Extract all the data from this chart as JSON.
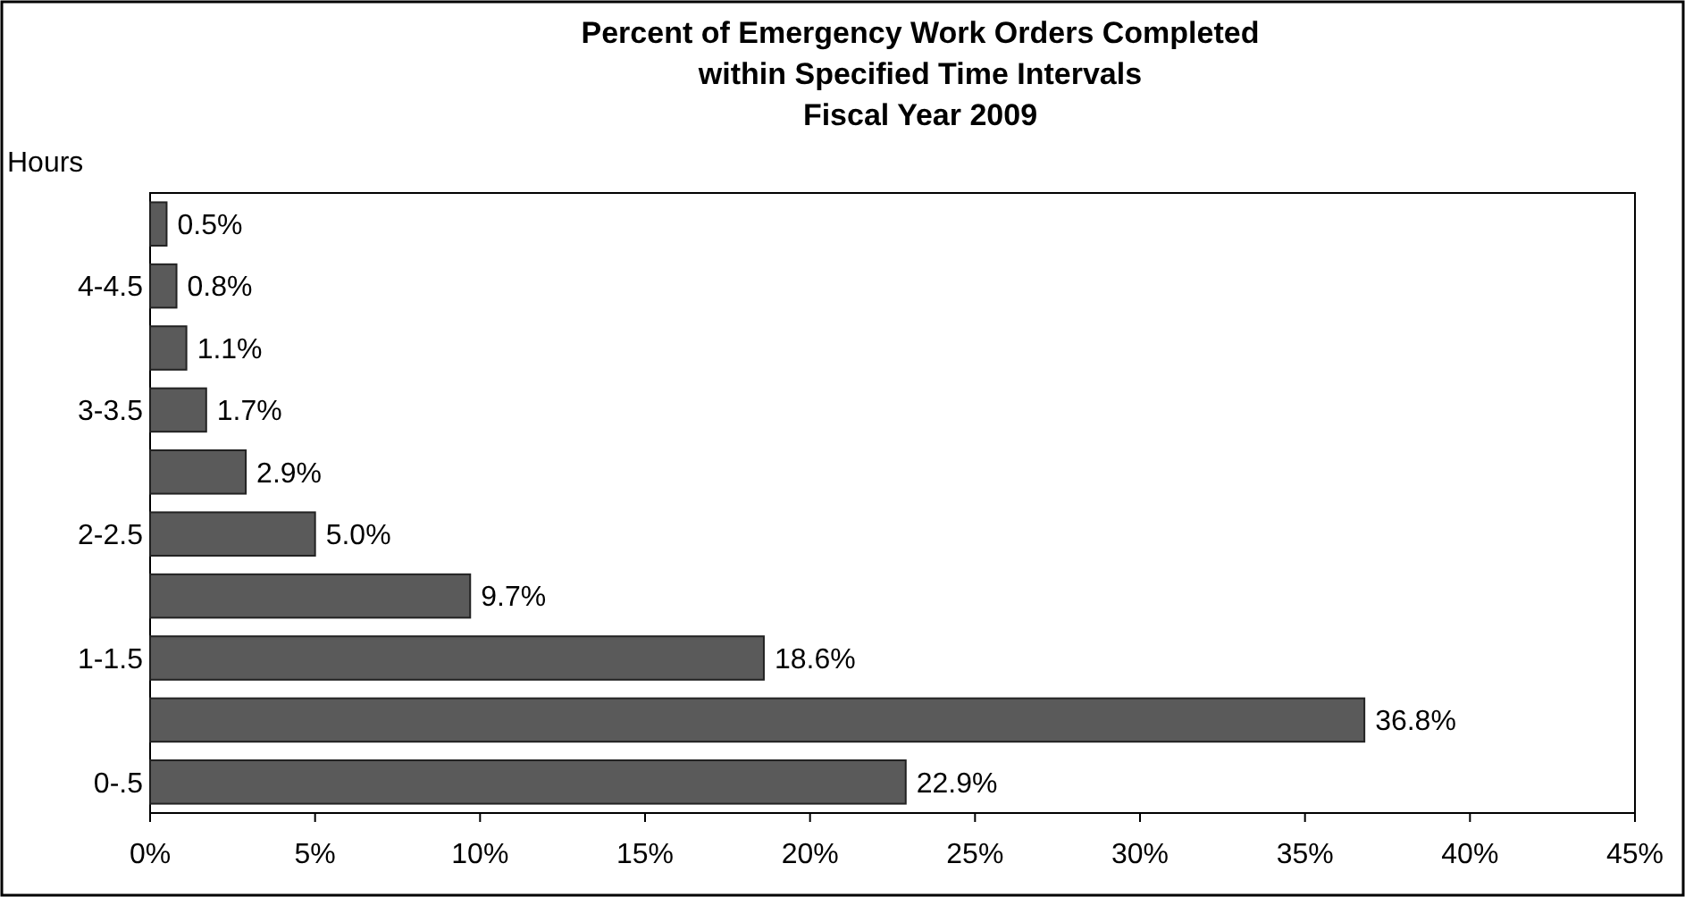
{
  "chart_data": {
    "type": "bar",
    "orientation": "horizontal",
    "title": "Percent of Emergency Work Orders Completed\nwithin Specified Time Intervals",
    "subtitle": "Fiscal Year 2009",
    "ylabel": "Hours",
    "categories": [
      null,
      "4-4.5",
      null,
      "3-3.5",
      null,
      "2-2.5",
      null,
      "1-1.5",
      null,
      "0-.5"
    ],
    "values": [
      0.5,
      0.8,
      1.1,
      1.7,
      2.9,
      5.0,
      9.7,
      18.6,
      36.8,
      22.9
    ],
    "value_labels": [
      "0.5%",
      "0.8%",
      "1.1%",
      "1.7%",
      "2.9%",
      "5.0%",
      "9.7%",
      "18.6%",
      "36.8%",
      "22.9%"
    ],
    "color": "#5a5a5a",
    "xlim": [
      0,
      45
    ],
    "xticks": [
      {
        "value": 0,
        "label": "0%"
      },
      {
        "value": 5,
        "label": "5%"
      },
      {
        "value": 10,
        "label": "10%"
      },
      {
        "value": 15,
        "label": "15%"
      },
      {
        "value": 20,
        "label": "20%"
      },
      {
        "value": 25,
        "label": "25%"
      },
      {
        "value": 30,
        "label": "30%"
      },
      {
        "value": 35,
        "label": "35%"
      },
      {
        "value": 40,
        "label": "40%"
      },
      {
        "value": 45,
        "label": "45%"
      }
    ],
    "grid": false
  }
}
